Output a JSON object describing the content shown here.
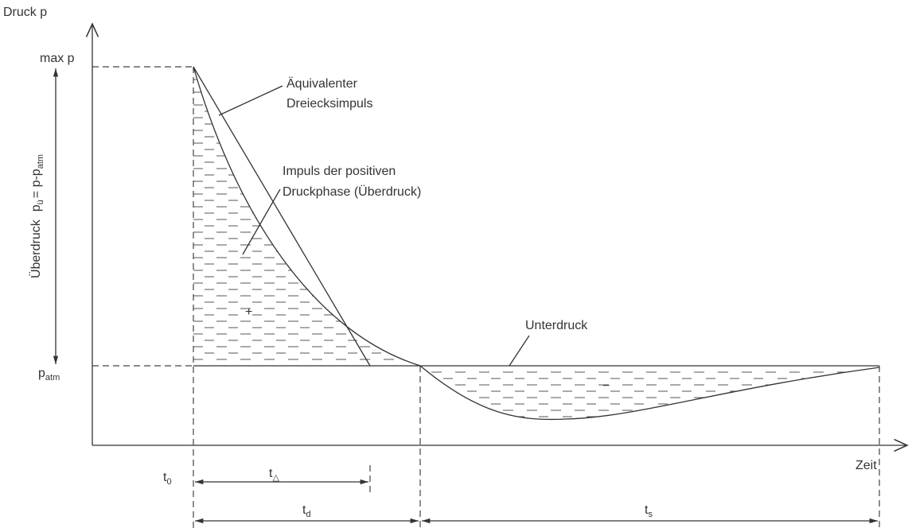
{
  "axes": {
    "y_label": "Druck p",
    "x_label": "Zeit"
  },
  "levels": {
    "max": "max p",
    "atm": {
      "base": "p",
      "sub": "atm"
    }
  },
  "overpressure": {
    "word": "Überdruck",
    "lhs": "p",
    "lhs_sub": "ü",
    "rhs": "= p-p",
    "rhs_sub": "atm"
  },
  "annotations": {
    "equivalent": [
      "Äquivalenter",
      "Dreiecksimpuls"
    ],
    "positive": [
      "Impuls der positiven",
      "Druckphase (Überdruck)"
    ],
    "negative": "Unterdruck",
    "signs": [
      "+",
      "−"
    ]
  },
  "times": {
    "t0": {
      "base": "t",
      "sub": "0"
    },
    "tdelta": {
      "base": "t",
      "sub": "△"
    },
    "td": {
      "base": "t",
      "sub": "d"
    },
    "ts": {
      "base": "t",
      "sub": "s"
    }
  }
}
